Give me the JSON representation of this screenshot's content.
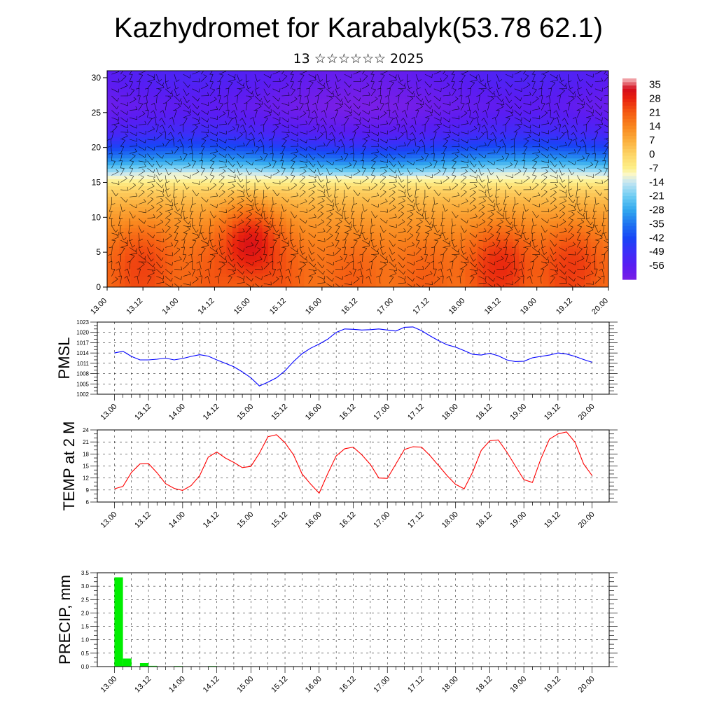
{
  "title": "Kazhydromet for Karabalyk(53.78 62.1)",
  "subtitle": "13 ☆☆☆☆☆☆ 2025",
  "time_ticks": [
    "13.00",
    "13.12",
    "14.00",
    "14.12",
    "15.00",
    "15.12",
    "16.00",
    "16.12",
    "17.00",
    "17.12",
    "18.00",
    "18.12",
    "19.00",
    "19.12",
    "20.00"
  ],
  "chart_data": [
    {
      "type": "heatmap",
      "title": "",
      "xlabel": "",
      "ylabel": "",
      "x_ticks": [
        "13.00",
        "13.12",
        "14.00",
        "14.12",
        "15.00",
        "15.12",
        "16.00",
        "16.12",
        "17.00",
        "17.12",
        "18.00",
        "18.12",
        "19.00",
        "19.12",
        "20.00"
      ],
      "y_ticks": [
        0,
        5,
        10,
        15,
        20,
        25,
        30
      ],
      "ylim": [
        0,
        31
      ],
      "colorbar_labels": [
        35,
        28,
        21,
        14,
        7,
        0,
        -7,
        -14,
        -21,
        -28,
        -35,
        -42,
        -49,
        -56
      ],
      "colorbar_range": [
        -63,
        38
      ],
      "overlay": "wind barbs",
      "temperature_profile": {
        "levels": [
          0,
          2,
          4,
          6,
          8,
          10,
          12,
          14,
          16,
          18,
          20,
          22,
          24,
          26,
          28,
          30
        ],
        "base_values": [
          19,
          19,
          18,
          16,
          13,
          10,
          6,
          0,
          -12,
          -30,
          -43,
          -52,
          -57,
          -60,
          -58,
          -56
        ],
        "warm_cores": [
          {
            "time": "15.00",
            "height": 6,
            "value": 31
          },
          {
            "time": "18.12",
            "height": 3,
            "value": 27
          },
          {
            "time": "19.12",
            "height": 3,
            "value": 25
          },
          {
            "time": "13.12",
            "height": 3,
            "value": 24
          }
        ]
      }
    },
    {
      "type": "line",
      "ylabel": "PMSL",
      "y_ticks": [
        1002,
        1005,
        1008,
        1011,
        1014,
        1017,
        1020,
        1023
      ],
      "ylim": [
        1002,
        1023
      ],
      "x_ticks": [
        "13.00",
        "13.12",
        "14.00",
        "14.12",
        "15.00",
        "15.12",
        "16.00",
        "16.12",
        "17.00",
        "17.12",
        "18.00",
        "18.12",
        "19.00",
        "19.12",
        "20.00"
      ],
      "series": [
        {
          "color": "#0000ff",
          "x_hours": [
            0,
            3,
            6,
            9,
            12,
            15,
            18,
            21,
            24,
            27,
            30,
            33,
            36,
            39,
            42,
            45,
            48,
            51,
            54,
            57,
            60,
            63,
            66,
            69,
            72,
            75,
            78,
            81,
            84,
            87,
            90,
            93,
            96,
            99,
            102,
            105,
            108,
            111,
            114,
            117,
            120,
            123,
            126,
            129,
            132,
            135,
            138,
            141,
            144,
            147,
            150,
            153,
            156,
            159,
            162,
            165,
            168
          ],
          "values": [
            1014,
            1014.5,
            1013,
            1012,
            1012,
            1012.2,
            1012.5,
            1012,
            1012.4,
            1013,
            1013.5,
            1013.1,
            1012,
            1011,
            1010,
            1008.5,
            1006.8,
            1004.4,
            1005.5,
            1006.8,
            1008.8,
            1011.5,
            1013.8,
            1015.4,
            1016.6,
            1018,
            1020,
            1021,
            1020.9,
            1020.7,
            1020.8,
            1021,
            1020.7,
            1020.4,
            1021.5,
            1021.6,
            1020.5,
            1019,
            1017.6,
            1016.4,
            1015.7,
            1014.7,
            1013.6,
            1013.4,
            1013.9,
            1013.2,
            1012,
            1011.5,
            1011.6,
            1012.6,
            1013,
            1013.4,
            1014,
            1013.7,
            1013,
            1012.1,
            1011.3
          ]
        }
      ]
    },
    {
      "type": "line",
      "ylabel": "TEMP at 2 M",
      "y_ticks": [
        6,
        9,
        12,
        15,
        18,
        21,
        24
      ],
      "ylim": [
        6,
        24
      ],
      "x_ticks": [
        "13.00",
        "13.12",
        "14.00",
        "14.12",
        "15.00",
        "15.12",
        "16.00",
        "16.12",
        "17.00",
        "17.12",
        "18.00",
        "18.12",
        "19.00",
        "19.12",
        "20.00"
      ],
      "series": [
        {
          "color": "#ff0000",
          "x_hours": [
            0,
            3,
            6,
            9,
            12,
            15,
            18,
            21,
            24,
            27,
            30,
            33,
            36,
            39,
            42,
            45,
            48,
            51,
            54,
            57,
            60,
            63,
            66,
            69,
            72,
            75,
            78,
            81,
            84,
            87,
            90,
            93,
            96,
            99,
            102,
            105,
            108,
            111,
            114,
            117,
            120,
            123,
            126,
            129,
            132,
            135,
            138,
            141,
            144,
            147,
            150,
            153,
            156,
            159,
            162,
            165,
            168
          ],
          "values": [
            9.3,
            9.9,
            13.4,
            15.5,
            15.6,
            13.3,
            10.6,
            9.4,
            8.9,
            10.1,
            12.6,
            17.2,
            18.5,
            17,
            15.9,
            14.6,
            14.9,
            18.2,
            22.3,
            22.8,
            20.8,
            17.8,
            13,
            10.5,
            8.2,
            13,
            17.5,
            19.3,
            19.7,
            17.8,
            15.4,
            12,
            11.9,
            15.5,
            19.1,
            19.8,
            19.7,
            17.6,
            15.1,
            12.6,
            10.4,
            9.3,
            13.5,
            18.9,
            21.3,
            21.5,
            18.5,
            15,
            11.6,
            10.9,
            16.8,
            21.7,
            23,
            23.5,
            20.9,
            15.5,
            12.6
          ]
        }
      ]
    },
    {
      "type": "bar",
      "ylabel": "PRECIP, mm",
      "y_ticks": [
        0.0,
        0.5,
        1.0,
        1.5,
        2.0,
        2.5,
        3.0,
        3.5
      ],
      "ylim": [
        0,
        3.5
      ],
      "x_ticks": [
        "13.00",
        "13.12",
        "14.00",
        "14.12",
        "15.00",
        "15.12",
        "16.00",
        "16.12",
        "17.00",
        "17.12",
        "18.00",
        "18.12",
        "19.00",
        "19.12",
        "20.00"
      ],
      "series": [
        {
          "color": "#00ee00",
          "x_hours": [
            3,
            6,
            12,
            15,
            24,
            36
          ],
          "values": [
            3.33,
            0.3,
            0.13,
            0.03,
            0.02,
            0.02
          ]
        }
      ]
    }
  ]
}
